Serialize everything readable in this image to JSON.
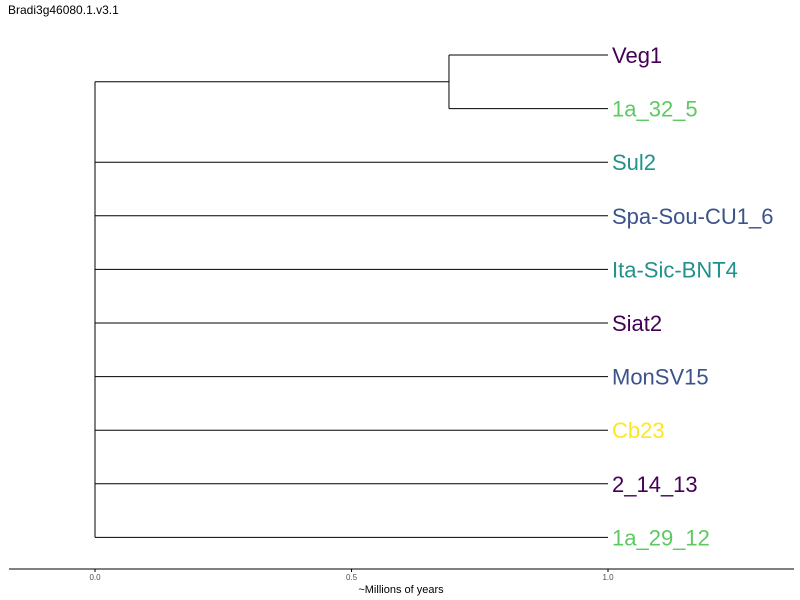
{
  "title": "Bradi3g46080.1.v3.1",
  "axis": {
    "label": "~Millions of years",
    "range": [
      0.0,
      1.0
    ],
    "ticks": [
      "0.0",
      "0.5",
      "1.0"
    ]
  },
  "tree": {
    "clade": {
      "node_age": 0.69,
      "tips": [
        {
          "name": "Veg1",
          "color": "#440154"
        },
        {
          "name": "1a_32_5",
          "color": "#5ec962"
        }
      ]
    },
    "tips": [
      {
        "name": "Sul2",
        "color": "#21918c"
      },
      {
        "name": "Spa-Sou-CU1_6",
        "color": "#3b528b"
      },
      {
        "name": "Ita-Sic-BNT4",
        "color": "#21918c"
      },
      {
        "name": "Siat2",
        "color": "#440154"
      },
      {
        "name": "MonSV15",
        "color": "#3b528b"
      },
      {
        "name": "Cb23",
        "color": "#fde725"
      },
      {
        "name": "2_14_13",
        "color": "#440154"
      },
      {
        "name": "1a_29_12",
        "color": "#5ec962"
      }
    ]
  }
}
